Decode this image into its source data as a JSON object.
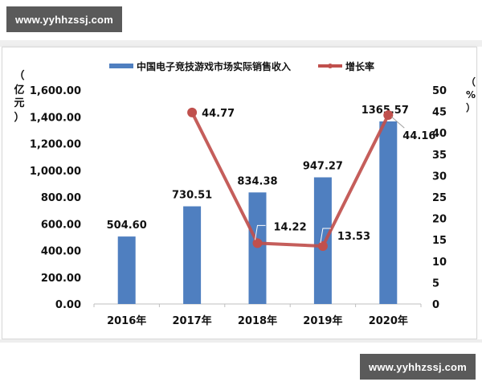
{
  "watermarks": {
    "top": "www.yyhhzssj.com",
    "bottom": "www.yyhhzssj.com"
  },
  "legend": {
    "bar_label": "中国电子竞技游戏市场实际销售收入",
    "line_label": "增长率"
  },
  "axes": {
    "left_unit": [
      "（",
      "亿",
      "元",
      "）"
    ],
    "right_unit": [
      "（",
      "%",
      "）"
    ]
  },
  "colors": {
    "bar": "#4f7fc0",
    "line": "#c0504d",
    "axis": "#bfbfbf",
    "text": "#111111"
  },
  "chart_data": {
    "type": "bar+line",
    "title": "",
    "categories": [
      "2016年",
      "2017年",
      "2018年",
      "2019年",
      "2020年"
    ],
    "series": [
      {
        "name": "中国电子竞技游戏市场实际销售收入",
        "type": "bar",
        "axis": "left",
        "values": [
          504.6,
          730.51,
          834.38,
          947.27,
          1365.57
        ],
        "labels": [
          "504.60",
          "730.51",
          "834.38",
          "947.27",
          "1365.57"
        ]
      },
      {
        "name": "增长率",
        "type": "line",
        "axis": "right",
        "values": [
          null,
          44.77,
          14.22,
          13.53,
          44.16
        ],
        "labels": [
          "",
          "44.77",
          "14.22",
          "13.53",
          "44.16"
        ]
      }
    ],
    "ylabel": "（亿元）",
    "y2label": "（%）",
    "ylim": [
      0,
      1600
    ],
    "y2lim": [
      0,
      50
    ],
    "yticks": [
      "0.00",
      "200.00",
      "400.00",
      "600.00",
      "800.00",
      "1,000.00",
      "1,200.00",
      "1,400.00",
      "1,600.00"
    ],
    "y2ticks": [
      "0",
      "5",
      "10",
      "15",
      "20",
      "25",
      "30",
      "35",
      "40",
      "45",
      "50"
    ],
    "grid": false,
    "legend_position": "top"
  }
}
